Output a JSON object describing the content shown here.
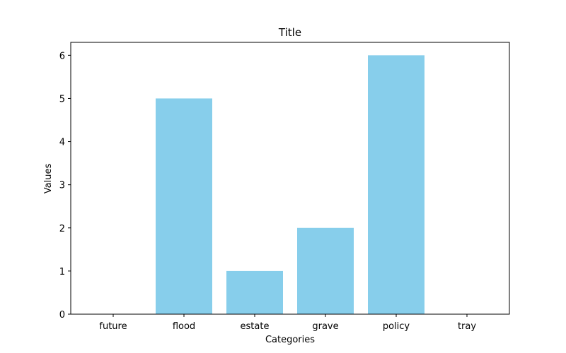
{
  "chart_data": {
    "type": "bar",
    "title": "Title",
    "xlabel": "Categories",
    "ylabel": "Values",
    "categories": [
      "future",
      "flood",
      "estate",
      "grave",
      "policy",
      "tray"
    ],
    "values": [
      0,
      5,
      1,
      2,
      6,
      0
    ],
    "ylim": [
      0,
      6.3
    ],
    "yticks": [
      0,
      1,
      2,
      3,
      4,
      5,
      6
    ],
    "grid": false,
    "legend": "none",
    "bar_color": "#87CEEB"
  }
}
